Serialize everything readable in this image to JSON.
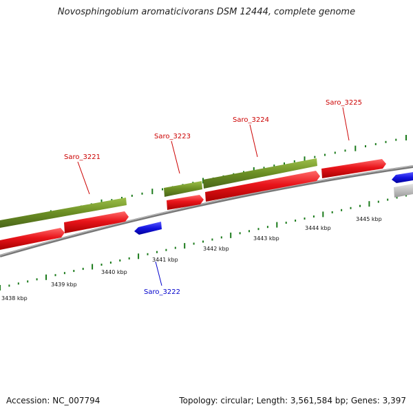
{
  "title": "Novosphingobium aromaticivorans DSM 12444, complete genome",
  "footer": {
    "accession": "Accession: NC_007794",
    "summary": "Topology: circular; Length: 3,561,584 bp; Genes: 3,397"
  },
  "scale_labels": [
    "3438 kbp",
    "3439 kbp",
    "3440 kbp",
    "3441 kbp",
    "3442 kbp",
    "3443 kbp",
    "3444 kbp",
    "3445 kbp"
  ],
  "gene_labels": [
    {
      "name": "Saro_3221",
      "color": "#cc0000"
    },
    {
      "name": "Saro_3222",
      "color": "#0000cc"
    },
    {
      "name": "Saro_3223",
      "color": "#cc0000"
    },
    {
      "name": "Saro_3224",
      "color": "#cc0000"
    },
    {
      "name": "Saro_3225",
      "color": "#cc0000"
    }
  ],
  "colors": {
    "cds": "#e8141a",
    "gene": "#6b8e23",
    "reverse_cds": "#1414e0",
    "other": "#bbbbbb",
    "backbone": "#777777",
    "ticks": "#1a7a1a"
  }
}
